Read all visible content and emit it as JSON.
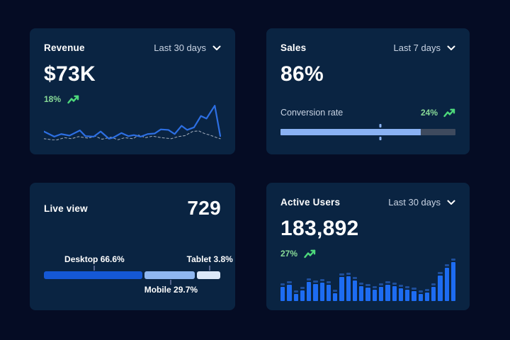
{
  "colors": {
    "page_bg": "#050C24",
    "card_bg": "#0A2442",
    "text_primary": "#FFFFFF",
    "text_muted": "#C9D4E4",
    "green_text": "#88DA97",
    "green_icon": "#4ED97B",
    "line_blue": "#2D6FE3",
    "line_dashed": "#97A3B4",
    "bar_blue": "#1D6CF2",
    "bar_cap": "#1E4E9A",
    "desktop_blue": "#1558D4",
    "mobile_blue": "#8FB7F0",
    "tablet_blue": "#DCE8F8",
    "progress_fill": "#8AB2F4",
    "progress_track": "#3E4A5E"
  },
  "cards": {
    "revenue": {
      "title": "Revenue",
      "range": "Last 30 days",
      "value": "$73K",
      "delta": "18%"
    },
    "sales": {
      "title": "Sales",
      "range": "Last 7 days",
      "value": "86%",
      "delta": "24%",
      "metric_label": "Conversion rate"
    },
    "live_view": {
      "title": "Live view",
      "value": "729",
      "desktop_label": "Desktop 66.6%",
      "mobile_label": "Mobile 29.7%",
      "tablet_label": "Tablet 3.8%"
    },
    "active_users": {
      "title": "Active Users",
      "range": "Last 30 days",
      "value": "183,892",
      "delta": "27%"
    }
  },
  "chart_data": [
    {
      "type": "line",
      "card": "revenue",
      "title": "Revenue, last 30 days (sparkline, no axes shown)",
      "coord_space": "viewBox 256x70, y increases downward",
      "series": [
        {
          "name": "current period",
          "style": "solid",
          "points": [
            [
              0,
              53
            ],
            [
              15,
              63
            ],
            [
              25,
              58
            ],
            [
              37,
              61
            ],
            [
              52,
              51
            ],
            [
              60,
              62
            ],
            [
              72,
              63
            ],
            [
              82,
              53
            ],
            [
              94,
              67
            ],
            [
              100,
              65
            ],
            [
              112,
              56
            ],
            [
              122,
              62
            ],
            [
              130,
              60
            ],
            [
              140,
              63
            ],
            [
              150,
              58
            ],
            [
              160,
              57
            ],
            [
              169,
              49
            ],
            [
              180,
              50
            ],
            [
              189,
              58
            ],
            [
              199,
              42
            ],
            [
              207,
              50
            ],
            [
              217,
              45
            ],
            [
              227,
              23
            ],
            [
              235,
              28
            ],
            [
              247,
              3
            ],
            [
              255,
              62
            ]
          ]
        },
        {
          "name": "previous period",
          "style": "dashed",
          "points": [
            [
              0,
              67
            ],
            [
              17,
              70
            ],
            [
              30,
              65
            ],
            [
              40,
              67
            ],
            [
              50,
              63
            ],
            [
              64,
              66
            ],
            [
              74,
              62
            ],
            [
              84,
              68
            ],
            [
              97,
              64
            ],
            [
              107,
              69
            ],
            [
              117,
              65
            ],
            [
              129,
              67
            ],
            [
              137,
              60
            ],
            [
              147,
              65
            ],
            [
              157,
              62
            ],
            [
              170,
              65
            ],
            [
              184,
              67
            ],
            [
              194,
              63
            ],
            [
              204,
              61
            ],
            [
              215,
              53
            ],
            [
              224,
              52
            ],
            [
              232,
              57
            ],
            [
              240,
              60
            ],
            [
              250,
              65
            ],
            [
              255,
              67
            ]
          ]
        }
      ],
      "legend": "hidden",
      "grid": "off"
    },
    {
      "type": "progress",
      "card": "sales",
      "label": "Conversion rate",
      "value_pct": 86,
      "fill_pct": 80,
      "marker_pct": 57
    },
    {
      "type": "stacked-bar",
      "card": "live_view",
      "segments": [
        {
          "name": "Desktop",
          "pct": 66.6,
          "display_width_pct": 55.5,
          "color_key": "desktop_blue",
          "label_pos": "top"
        },
        {
          "name": "Mobile",
          "pct": 29.7,
          "display_width_pct": 28.5,
          "color_key": "mobile_blue",
          "label_pos": "bottom"
        },
        {
          "name": "Tablet",
          "pct": 3.8,
          "display_width_pct": 13.0,
          "color_key": "tablet_blue",
          "label_pos": "top"
        }
      ]
    },
    {
      "type": "bar",
      "card": "active_users",
      "title": "Active users, last 30 days (no axes shown)",
      "values_pct_of_max": [
        36,
        41,
        19,
        27,
        49,
        44,
        47,
        41,
        20,
        61,
        64,
        53,
        39,
        34,
        30,
        36,
        42,
        38,
        33,
        29,
        25,
        19,
        22,
        36,
        66,
        85,
        100
      ],
      "grid": "off",
      "legend": "hidden"
    }
  ]
}
